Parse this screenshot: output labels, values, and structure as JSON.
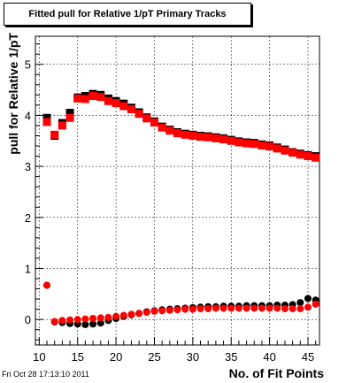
{
  "header": {
    "title": "Fitted pull for Relative 1/pT Primary Tracks"
  },
  "footer": {
    "timestamp": "Fri Oct 28 17:13:10 2011"
  },
  "chart_data": {
    "type": "scatter",
    "title": "Fitted pull for Relative 1/pT Primary Tracks",
    "xlabel": "No. of Fit Points",
    "ylabel": "pull for Relative 1/pT",
    "xlim": [
      9.5,
      46.5
    ],
    "ylim": [
      -0.5,
      5.55
    ],
    "x_ticks": [
      10,
      15,
      20,
      25,
      30,
      35,
      40,
      45
    ],
    "y_ticks": [
      0,
      1,
      2,
      3,
      4,
      5
    ],
    "grid": true,
    "colors": {
      "black": "#000000",
      "red": "#ff0000"
    },
    "series": [
      {
        "marker": "square",
        "color": "#000000",
        "x": [
          11,
          12,
          13,
          14,
          15,
          16,
          17,
          18,
          19,
          20,
          21,
          22,
          23,
          24,
          25,
          26,
          27,
          28,
          29,
          30,
          31,
          32,
          33,
          34,
          35,
          36,
          37,
          38,
          39,
          40,
          41,
          42,
          43,
          44,
          45,
          46
        ],
        "y": [
          3.95,
          3.6,
          3.85,
          4.05,
          4.35,
          4.38,
          4.42,
          4.4,
          4.33,
          4.28,
          4.23,
          4.15,
          4.06,
          3.96,
          3.88,
          3.78,
          3.72,
          3.67,
          3.64,
          3.62,
          3.6,
          3.59,
          3.57,
          3.55,
          3.52,
          3.49,
          3.47,
          3.46,
          3.43,
          3.41,
          3.37,
          3.33,
          3.28,
          3.25,
          3.22,
          3.2
        ]
      },
      {
        "marker": "square",
        "color": "#ff0000",
        "x": [
          11,
          12,
          13,
          14,
          15,
          16,
          17,
          18,
          19,
          20,
          21,
          22,
          23,
          24,
          25,
          26,
          27,
          28,
          29,
          30,
          31,
          32,
          33,
          34,
          35,
          36,
          37,
          38,
          39,
          40,
          41,
          42,
          43,
          44,
          45,
          46
        ],
        "y": [
          3.87,
          3.62,
          3.8,
          3.95,
          4.33,
          4.32,
          4.38,
          4.36,
          4.28,
          4.24,
          4.18,
          4.12,
          4.03,
          3.94,
          3.86,
          3.76,
          3.7,
          3.65,
          3.62,
          3.6,
          3.58,
          3.57,
          3.55,
          3.53,
          3.5,
          3.47,
          3.45,
          3.44,
          3.41,
          3.39,
          3.35,
          3.31,
          3.27,
          3.23,
          3.2,
          3.17
        ]
      },
      {
        "marker": "circle",
        "color": "#000000",
        "x": [
          11,
          12,
          13,
          14,
          15,
          16,
          17,
          18,
          19,
          20,
          21,
          22,
          23,
          24,
          25,
          26,
          27,
          28,
          29,
          30,
          31,
          32,
          33,
          34,
          35,
          36,
          37,
          38,
          39,
          40,
          41,
          42,
          43,
          44,
          45,
          46
        ],
        "y": [
          0.67,
          -0.05,
          -0.06,
          -0.08,
          -0.09,
          -0.1,
          -0.09,
          -0.07,
          -0.02,
          0.02,
          0.06,
          0.09,
          0.12,
          0.15,
          0.17,
          0.19,
          0.2,
          0.21,
          0.22,
          0.23,
          0.24,
          0.25,
          0.25,
          0.26,
          0.26,
          0.26,
          0.27,
          0.27,
          0.27,
          0.27,
          0.28,
          0.28,
          0.29,
          0.33,
          0.41,
          0.38
        ]
      },
      {
        "marker": "circle",
        "color": "#ff0000",
        "x": [
          11,
          12,
          13,
          14,
          15,
          16,
          17,
          18,
          19,
          20,
          21,
          22,
          23,
          24,
          25,
          26,
          27,
          28,
          29,
          30,
          31,
          32,
          33,
          34,
          35,
          36,
          37,
          38,
          39,
          40,
          41,
          42,
          43,
          44,
          45,
          46
        ],
        "y": [
          0.67,
          -0.04,
          -0.02,
          -0.01,
          0.0,
          0.01,
          0.02,
          0.03,
          0.04,
          0.06,
          0.08,
          0.1,
          0.12,
          0.14,
          0.16,
          0.17,
          0.18,
          0.19,
          0.2,
          0.2,
          0.21,
          0.21,
          0.22,
          0.22,
          0.22,
          0.22,
          0.22,
          0.22,
          0.22,
          0.22,
          0.22,
          0.21,
          0.21,
          0.21,
          0.24,
          0.3
        ]
      }
    ]
  }
}
